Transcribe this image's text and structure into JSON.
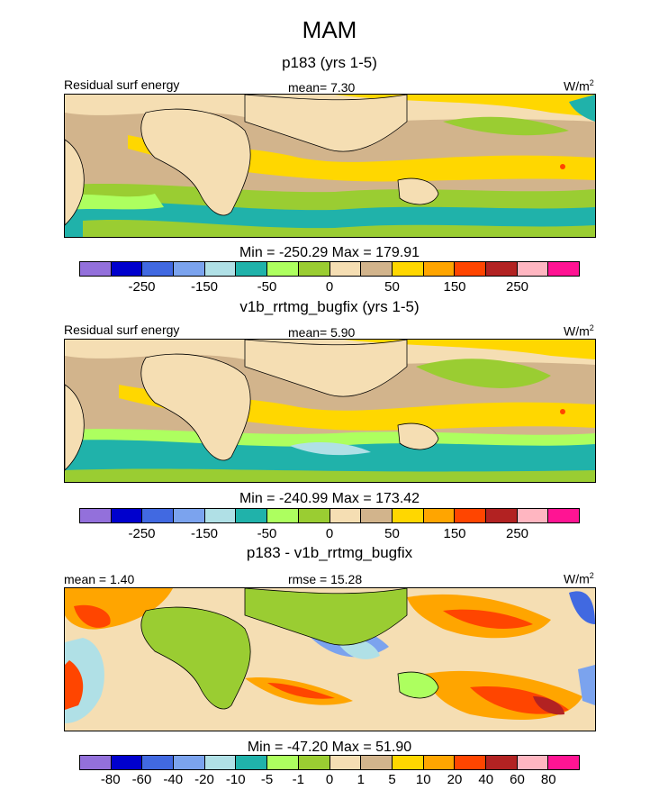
{
  "chart_data": [
    {
      "type": "heatmap",
      "title": "p183 (yrs 1-5)",
      "left_label": "Residual surf energy",
      "center_label": "mean=   7.30",
      "units": "W/m",
      "units_sup": "2",
      "minmax": "Min = -250.29 Max = 179.91",
      "colorbar": {
        "colors": [
          "#9370DB",
          "#0000CD",
          "#4169E1",
          "#7BA3EE",
          "#B0E0E6",
          "#20B2AA",
          "#ADFF5F",
          "#9ACD32",
          "#F5DEB3",
          "#D2B48C",
          "#FFD700",
          "#FFA500",
          "#FF4500",
          "#B22222",
          "#FFB6C1",
          "#FF1493"
        ],
        "tick_labels": [
          "-250",
          "-150",
          "-50",
          "0",
          "50",
          "150",
          "250"
        ]
      }
    },
    {
      "type": "heatmap",
      "title": "v1b_rrtmg_bugfix (yrs 1-5)",
      "left_label": "Residual surf energy",
      "center_label": "mean=   5.90",
      "units": "W/m",
      "units_sup": "2",
      "minmax": "Min = -240.99 Max = 173.42",
      "colorbar": {
        "colors": [
          "#9370DB",
          "#0000CD",
          "#4169E1",
          "#7BA3EE",
          "#B0E0E6",
          "#20B2AA",
          "#ADFF5F",
          "#9ACD32",
          "#F5DEB3",
          "#D2B48C",
          "#FFD700",
          "#FFA500",
          "#FF4500",
          "#B22222",
          "#FFB6C1",
          "#FF1493"
        ],
        "tick_labels": [
          "-250",
          "-150",
          "-50",
          "0",
          "50",
          "150",
          "250"
        ]
      }
    },
    {
      "type": "heatmap",
      "title": "p183 - v1b_rrtmg_bugfix",
      "left_label": "mean =   1.40",
      "center_label": "rmse =  15.28",
      "units": "W/m",
      "units_sup": "2",
      "minmax": "Min = -47.20 Max = 51.90",
      "colorbar": {
        "colors": [
          "#9370DB",
          "#0000CD",
          "#4169E1",
          "#7BA3EE",
          "#B0E0E6",
          "#20B2AA",
          "#ADFF5F",
          "#9ACD32",
          "#F5DEB3",
          "#D2B48C",
          "#FFD700",
          "#FFA500",
          "#FF4500",
          "#B22222",
          "#FFB6C1",
          "#FF1493"
        ],
        "tick_labels": [
          "-80",
          "-60",
          "-40",
          "-20",
          "-10",
          "-5",
          "-1",
          "0",
          "1",
          "5",
          "10",
          "20",
          "40",
          "60",
          "80"
        ]
      }
    }
  ],
  "page": {
    "title": "MAM"
  }
}
